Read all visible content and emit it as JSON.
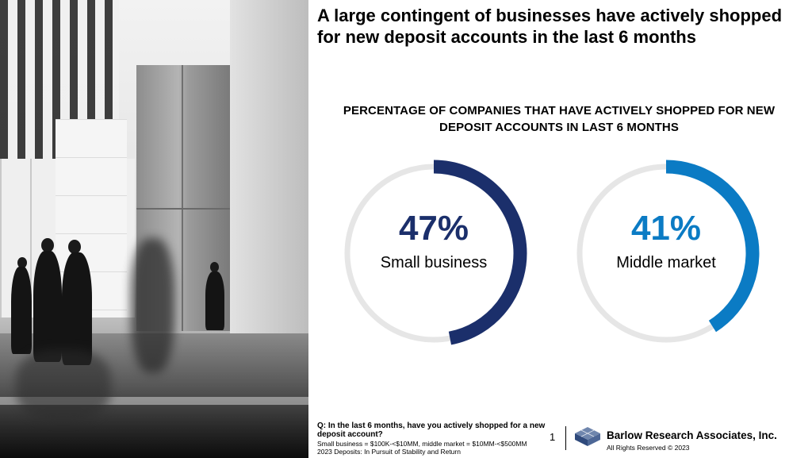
{
  "slide": {
    "headline": "A large contingent of businesses have actively shopped for new deposit accounts in the last 6 months",
    "chart_title": "PERCENTAGE OF COMPANIES THAT HAVE ACTIVELY SHOPPED FOR NEW DEPOSIT ACCOUNTS IN LAST 6 MONTHS",
    "segments": [
      {
        "value": 47,
        "display": "47%",
        "label": "Small business",
        "color": "#1b2f6b"
      },
      {
        "value": 41,
        "display": "41%",
        "label": "Middle market",
        "color": "#0b7bc4"
      }
    ],
    "track_color": "#e6e6e6",
    "footer": {
      "question": "Q: In the last 6 months, have you actively shopped for a new deposit account?",
      "definition": "Small business = $100K-<$10MM, middle market = $10MM-<$500MM",
      "source": "2023 Deposits: In Pursuit of Stability and Return",
      "page_number": "1",
      "company": "Barlow Research Associates, Inc.",
      "rights": "All Rights Reserved © 2023"
    }
  }
}
